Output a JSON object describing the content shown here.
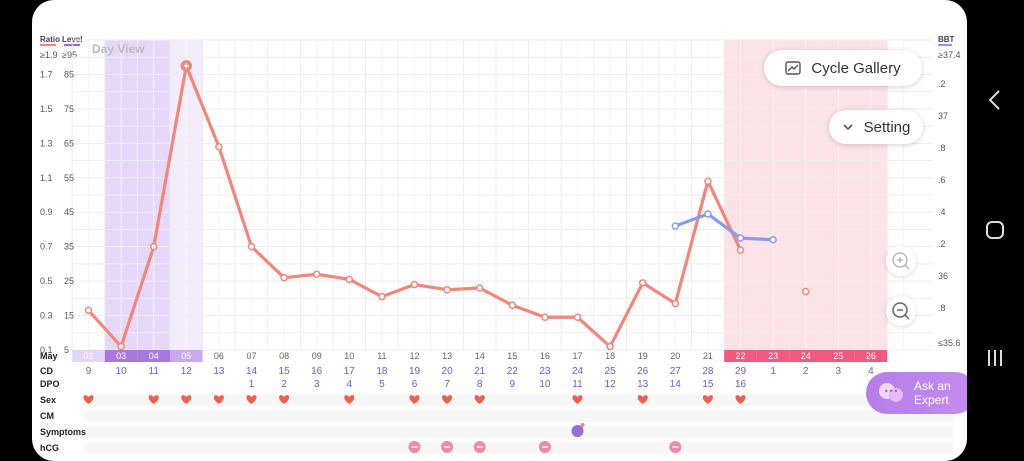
{
  "header": {
    "ratio_label": "Ratio",
    "level_label": "Level",
    "bbt_label": "BBT",
    "day_view": "Day View",
    "ratio_top": "≥1.9",
    "level_top": "≥95",
    "bbt_top": "≥37.4",
    "bbt_bottom": "≤35.6"
  },
  "left_axis": [
    {
      "ratio": "1.7",
      "level": "85"
    },
    {
      "ratio": "1.5",
      "level": "75"
    },
    {
      "ratio": "1.3",
      "level": "65"
    },
    {
      "ratio": "1.1",
      "level": "55"
    },
    {
      "ratio": "0.9",
      "level": "45"
    },
    {
      "ratio": "0.7",
      "level": "35"
    },
    {
      "ratio": "0.5",
      "level": "25"
    },
    {
      "ratio": "0.3",
      "level": "15"
    },
    {
      "ratio": "0.1",
      "level": "5"
    }
  ],
  "right_axis": [
    ".2",
    "37",
    ".8",
    ".6",
    ".4",
    ".2",
    "36",
    ".8"
  ],
  "buttons": {
    "cycle_gallery": "Cycle Gallery",
    "setting": "Setting",
    "ask_expert_line1": "Ask an",
    "ask_expert_line2": "Expert"
  },
  "rows": {
    "month": "May",
    "cd": "CD",
    "dpo": "DPO",
    "sex": "Sex",
    "cm": "CM",
    "symptoms": "Symptoms",
    "hcg": "hCG"
  },
  "days": [
    "02",
    "03",
    "04",
    "05",
    "06",
    "07",
    "08",
    "09",
    "10",
    "11",
    "12",
    "13",
    "14",
    "15",
    "16",
    "17",
    "18",
    "19",
    "20",
    "21",
    "22",
    "23",
    "24",
    "25",
    "26"
  ],
  "cd": [
    "9",
    "10",
    "11",
    "12",
    "13",
    "14",
    "15",
    "16",
    "17",
    "18",
    "19",
    "20",
    "21",
    "22",
    "23",
    "24",
    "25",
    "26",
    "27",
    "28",
    "29",
    "1",
    "2",
    "3",
    "4"
  ],
  "dpo": [
    "",
    "",
    "",
    "",
    "",
    "1",
    "2",
    "3",
    "4",
    "5",
    "6",
    "7",
    "8",
    "9",
    "10",
    "11",
    "12",
    "13",
    "14",
    "15",
    "16",
    "",
    "",
    "",
    ""
  ],
  "sex": [
    1,
    0,
    1,
    1,
    1,
    1,
    1,
    0,
    1,
    0,
    1,
    1,
    1,
    0,
    0,
    1,
    0,
    1,
    0,
    1,
    1,
    0,
    0,
    0,
    0
  ],
  "hcg": [
    0,
    0,
    0,
    0,
    0,
    0,
    0,
    0,
    0,
    0,
    1,
    1,
    1,
    0,
    1,
    0,
    0,
    0,
    1,
    0,
    0,
    0,
    0,
    0,
    0
  ],
  "symptoms": [
    0,
    0,
    0,
    0,
    0,
    0,
    0,
    0,
    0,
    0,
    0,
    0,
    0,
    0,
    0,
    1,
    0,
    0,
    0,
    0,
    0,
    0,
    0,
    0,
    0
  ],
  "highlight_days": {
    "fertile": [
      "03",
      "04",
      "05"
    ],
    "period": [
      "22",
      "23",
      "24",
      "25",
      "26"
    ]
  },
  "chart_data": {
    "type": "line",
    "x": [
      "02",
      "03",
      "04",
      "05",
      "06",
      "07",
      "08",
      "09",
      "10",
      "11",
      "12",
      "13",
      "14",
      "15",
      "16",
      "17",
      "18",
      "19",
      "20",
      "21",
      "22",
      "23",
      "24",
      "25",
      "26"
    ],
    "series": [
      {
        "values": [
          0.33,
          0.12,
          0.7,
          1.75,
          1.28,
          0.7,
          0.52,
          0.54,
          0.51,
          0.41,
          0.48,
          0.45,
          0.46,
          0.36,
          0.29,
          0.29,
          0.12,
          0.49,
          0.37,
          1.08,
          0.68,
          null,
          0.44,
          null,
          null
        ],
        "color": "#f0877a"
      },
      {
        "values": [
          null,
          null,
          null,
          null,
          null,
          null,
          null,
          null,
          null,
          null,
          null,
          null,
          null,
          null,
          null,
          null,
          null,
          null,
          0.82,
          0.89,
          0.75,
          0.74,
          null,
          null,
          null
        ],
        "color": "#8a9be8"
      }
    ],
    "ylim": [
      0.1,
      1.9
    ]
  },
  "colors": {
    "lh": "#f0877a",
    "bbt": "#8a9be8",
    "purple": "#9b6bd6",
    "pink": "#f05a7e"
  }
}
